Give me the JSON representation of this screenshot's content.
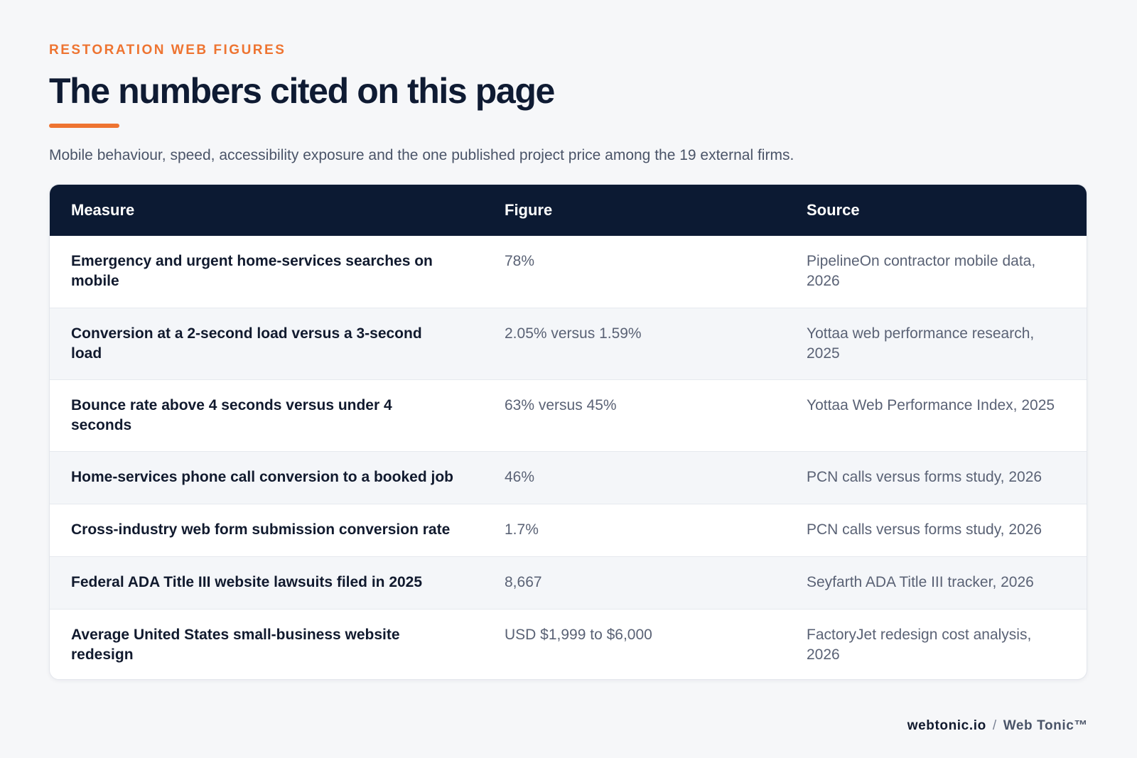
{
  "header": {
    "eyebrow": "RESTORATION WEB FIGURES",
    "title": "The numbers cited on this page",
    "subtitle": "Mobile behaviour, speed, accessibility exposure and the one published project price among the 19 external firms."
  },
  "table": {
    "columns": [
      "Measure",
      "Figure",
      "Source"
    ],
    "rows": [
      {
        "measure": "Emergency and urgent home-services searches on mobile",
        "figure": "78%",
        "source": "PipelineOn contractor mobile data, 2026"
      },
      {
        "measure": "Conversion at a 2-second load versus a 3-second load",
        "figure": "2.05% versus 1.59%",
        "source": "Yottaa web performance research, 2025"
      },
      {
        "measure": "Bounce rate above 4 seconds versus under 4 seconds",
        "figure": "63% versus 45%",
        "source": "Yottaa Web Performance Index, 2025"
      },
      {
        "measure": "Home-services phone call conversion to a booked job",
        "figure": "46%",
        "source": "PCN calls versus forms study, 2026"
      },
      {
        "measure": "Cross-industry web form submission conversion rate",
        "figure": "1.7%",
        "source": "PCN calls versus forms study, 2026"
      },
      {
        "measure": "Federal ADA Title III website lawsuits filed in 2025",
        "figure": "8,667",
        "source": "Seyfarth ADA Title III tracker, 2026"
      },
      {
        "measure": "Average United States small-business website redesign",
        "figure": "USD $1,999 to $6,000",
        "source": "FactoryJet redesign cost analysis, 2026"
      }
    ]
  },
  "footer": {
    "site": "webtonic.io",
    "separator": "/",
    "brand": "Web Tonic™"
  },
  "colors": {
    "accent": "#ee7431",
    "header_bg": "#0c1a33",
    "page_bg": "#f6f7f9"
  }
}
